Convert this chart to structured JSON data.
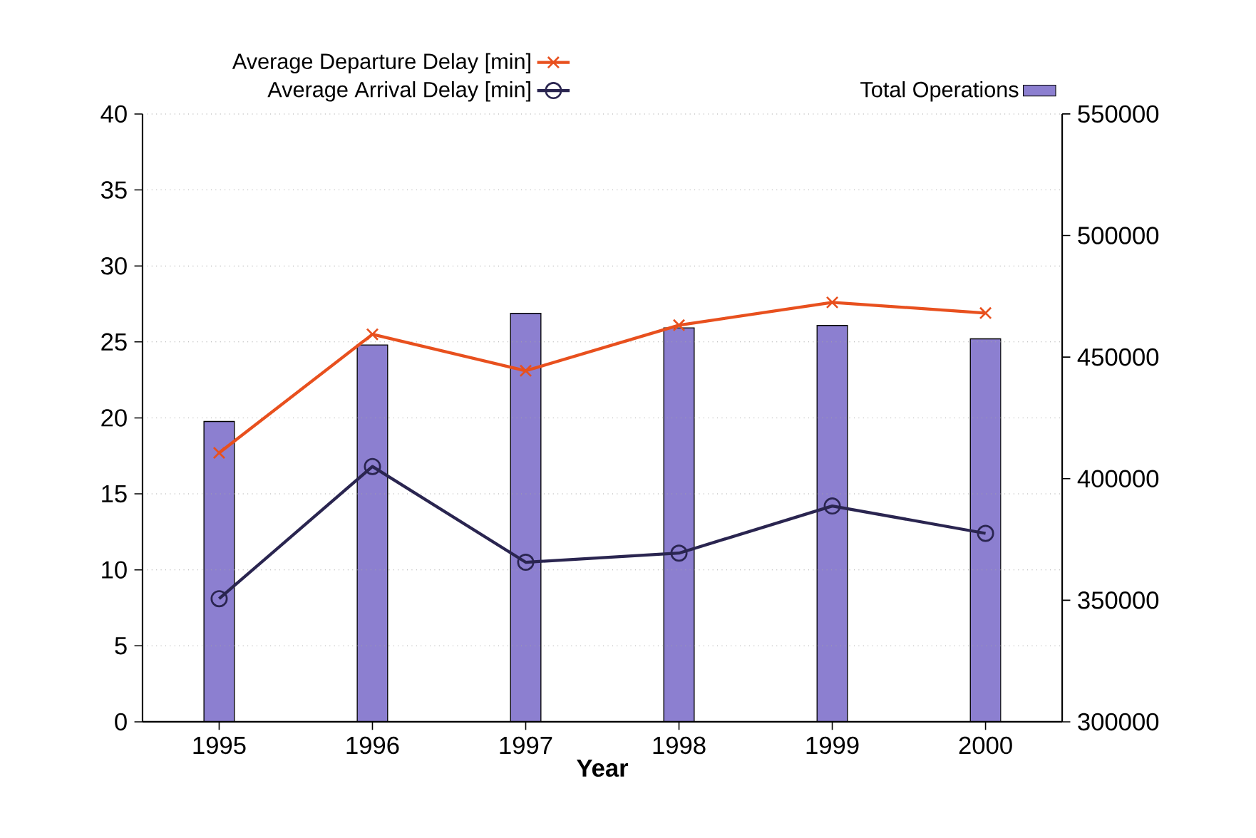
{
  "chart_data": {
    "type": "bar",
    "xlabel": "Year",
    "categories": [
      "1995",
      "1996",
      "1997",
      "1998",
      "1999",
      "2000"
    ],
    "series": [
      {
        "name": "Total Operations",
        "axis": "y2",
        "color": "#8c7fd0",
        "values": [
          423500,
          455000,
          468000,
          462000,
          463000,
          457500
        ]
      },
      {
        "name": "Average Departure Delay [min]",
        "type": "line",
        "marker": "cross",
        "color": "#e8501e",
        "values": [
          17.7,
          25.5,
          23.1,
          26.1,
          27.6,
          26.9
        ]
      },
      {
        "name": "Average Arrival Delay [min]",
        "type": "line",
        "marker": "circle",
        "color": "#2a2550",
        "values": [
          8.1,
          16.8,
          10.5,
          11.1,
          14.2,
          12.4
        ]
      }
    ],
    "ylim": [
      0,
      40
    ],
    "yticks": [
      0,
      5,
      10,
      15,
      20,
      25,
      30,
      35,
      40
    ],
    "y2lim": [
      300000,
      550000
    ],
    "y2ticks": [
      300000,
      350000,
      400000,
      450000,
      500000,
      550000
    ],
    "grid": "y",
    "legend": "top"
  }
}
